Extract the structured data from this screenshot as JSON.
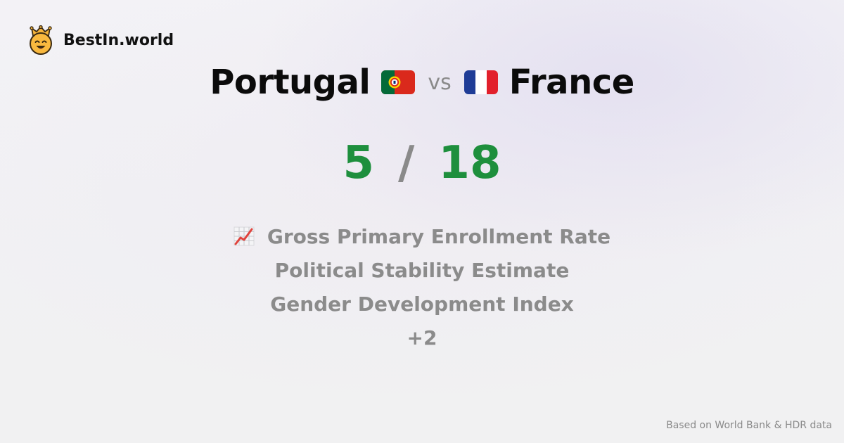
{
  "brand": {
    "name": "BestIn.world",
    "logo_icon": "crown-smiley-icon"
  },
  "comparison": {
    "left_country": "Portugal",
    "left_flag_icon": "portugal-flag-icon",
    "vs_label": "vs",
    "right_country": "France",
    "right_flag_icon": "france-flag-icon"
  },
  "score": {
    "left": "5",
    "separator": "/",
    "right": "18",
    "color": "#1e8f3d"
  },
  "categories": {
    "icon": "chart-increasing-icon",
    "items": [
      "Gross Primary Enrollment Rate",
      "Political Stability Estimate",
      "Gender Development Index"
    ],
    "more": "+2"
  },
  "footer": {
    "source": "Based on World Bank & HDR data"
  }
}
